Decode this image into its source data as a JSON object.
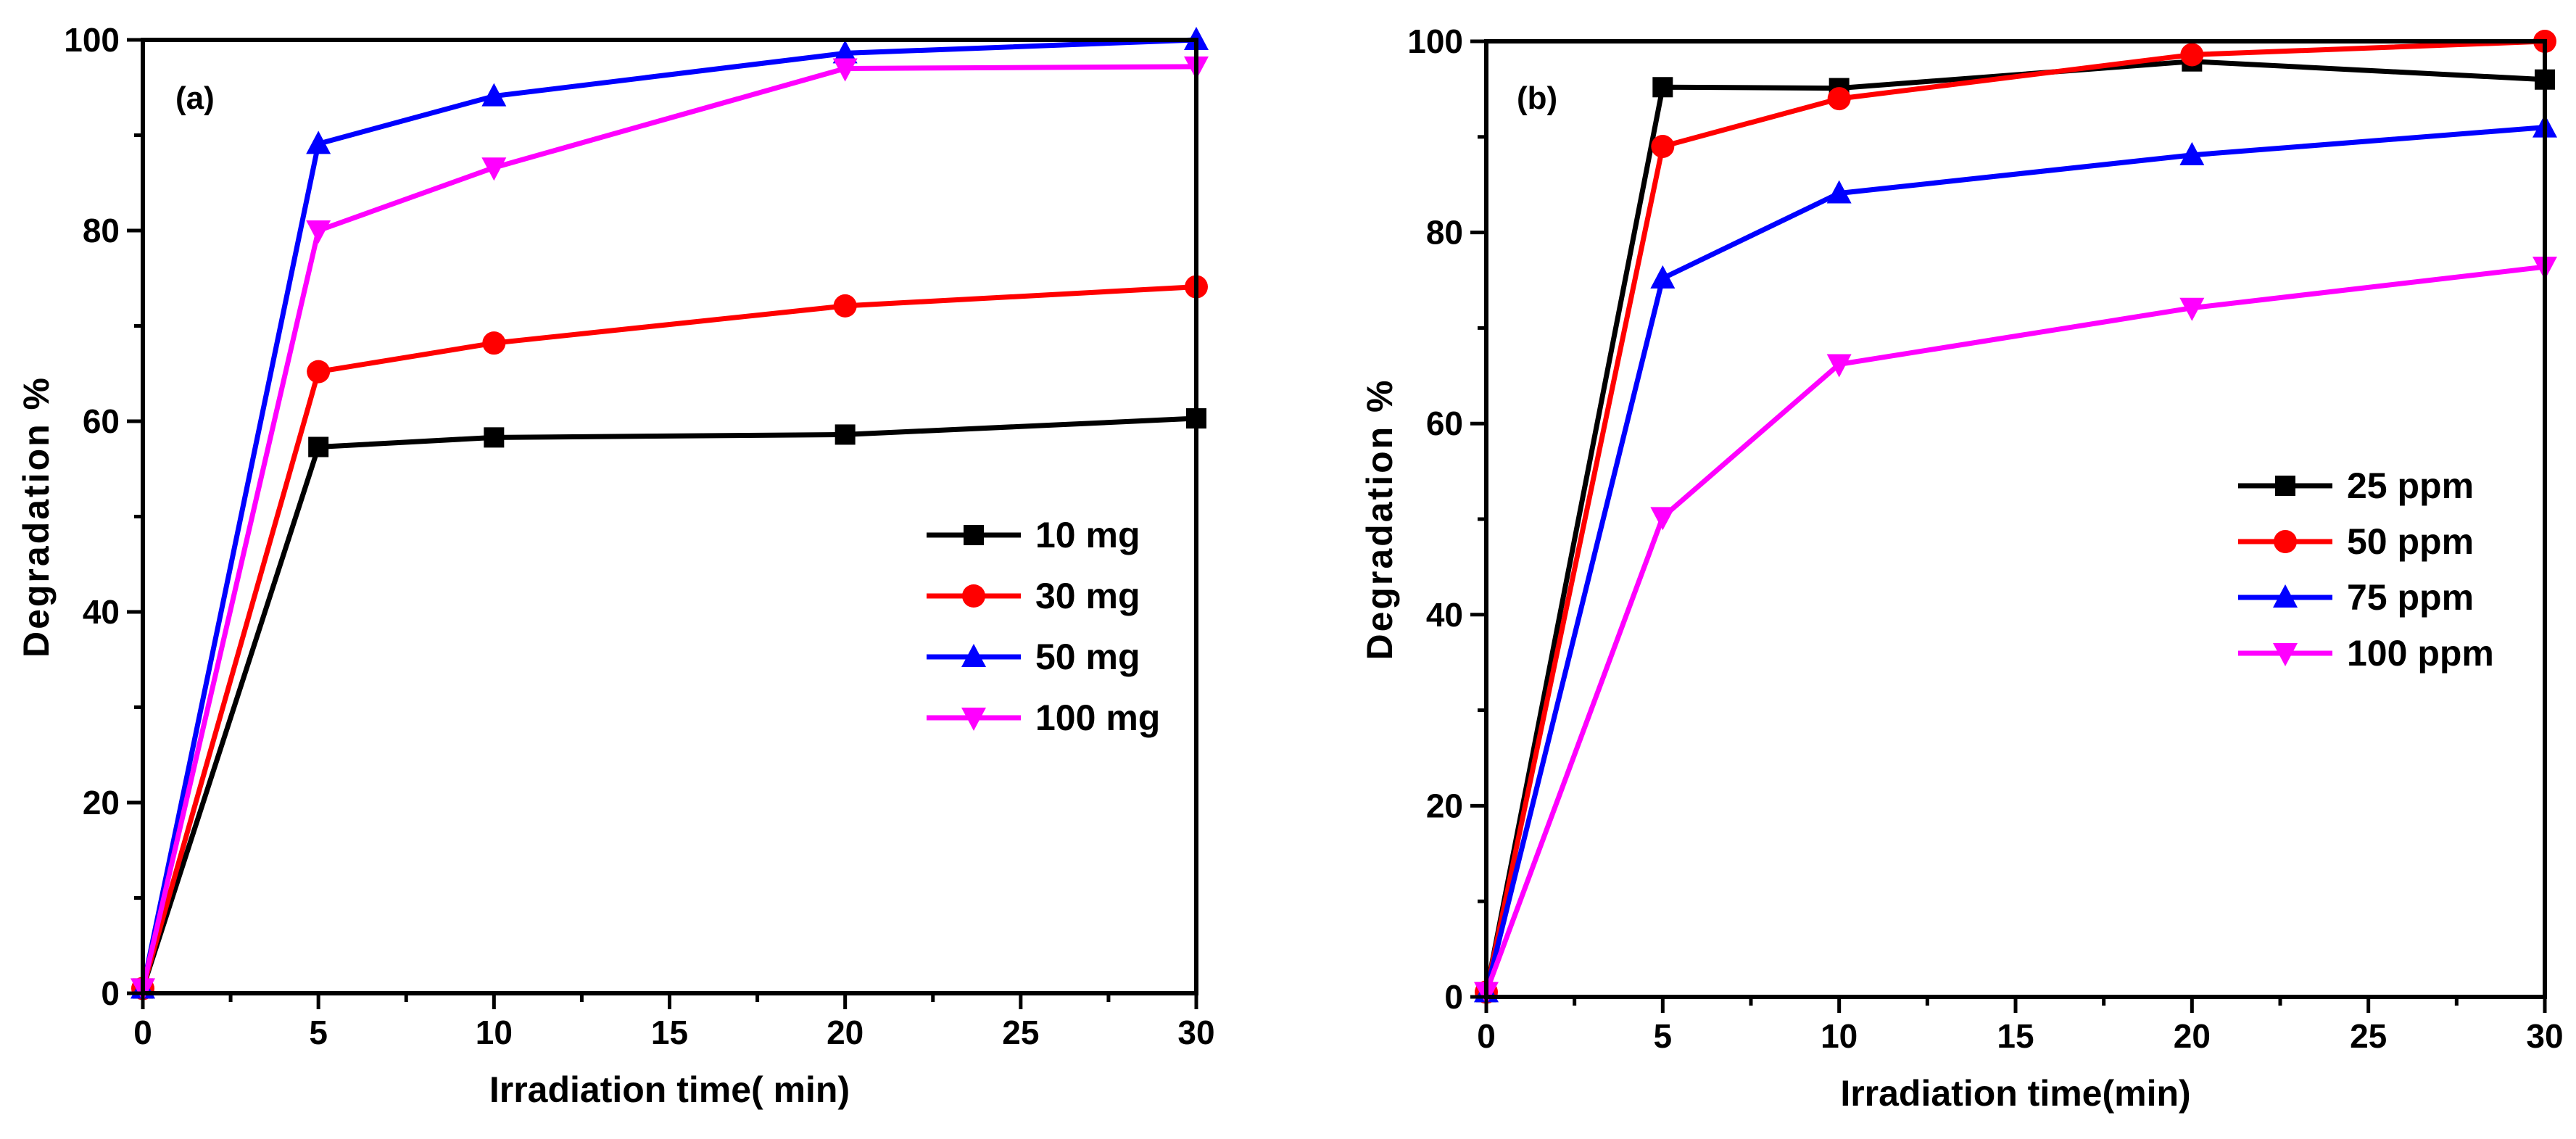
{
  "chart_data": [
    {
      "type": "line",
      "panel_label": "(a)",
      "xlabel": "Irradiation time( min)",
      "ylabel": "Degradation %",
      "xlim": [
        0,
        30
      ],
      "ylim": [
        0,
        100
      ],
      "xticks": [
        0,
        5,
        10,
        15,
        20,
        25,
        30
      ],
      "yticks": [
        0,
        20,
        40,
        60,
        80,
        100
      ],
      "legend_position": "center-right",
      "x": [
        0,
        5,
        10,
        20,
        30
      ],
      "series": [
        {
          "name": "10 mg",
          "color": "#000000",
          "marker": "square",
          "values": [
            0.5,
            57.3,
            58.3,
            58.6,
            60.3
          ]
        },
        {
          "name": "30 mg",
          "color": "#ff0000",
          "marker": "circle",
          "values": [
            0.5,
            65.2,
            68.2,
            72.1,
            74.1
          ]
        },
        {
          "name": "50 mg",
          "color": "#0000ff",
          "marker": "triangle-up",
          "values": [
            0.5,
            89.1,
            94.1,
            98.6,
            100
          ]
        },
        {
          "name": "100 mg",
          "color": "#ff00ff",
          "marker": "triangle-down",
          "values": [
            0.5,
            80.0,
            86.6,
            97.0,
            97.2
          ]
        }
      ]
    },
    {
      "type": "line",
      "panel_label": "(b)",
      "xlabel": "Irradiation time(min)",
      "ylabel": "Degradation %",
      "xlim": [
        0,
        30
      ],
      "ylim": [
        0,
        100
      ],
      "xticks": [
        0,
        5,
        10,
        15,
        20,
        25,
        30
      ],
      "yticks": [
        0,
        20,
        40,
        60,
        80,
        100
      ],
      "legend_position": "center-right",
      "x": [
        0,
        5,
        10,
        20,
        30
      ],
      "series": [
        {
          "name": "25 ppm",
          "color": "#000000",
          "marker": "square",
          "values": [
            0.5,
            95.2,
            95.1,
            97.9,
            96.0
          ]
        },
        {
          "name": "50 ppm",
          "color": "#ff0000",
          "marker": "circle",
          "values": [
            0.5,
            89.0,
            94.0,
            98.6,
            100
          ]
        },
        {
          "name": "75 ppm",
          "color": "#0000ff",
          "marker": "triangle-up",
          "values": [
            0.5,
            75.2,
            84.1,
            88.1,
            91.0
          ]
        },
        {
          "name": "100 ppm",
          "color": "#ff00ff",
          "marker": "triangle-down",
          "values": [
            0.5,
            50.2,
            66.2,
            72.1,
            76.4
          ]
        }
      ]
    }
  ]
}
